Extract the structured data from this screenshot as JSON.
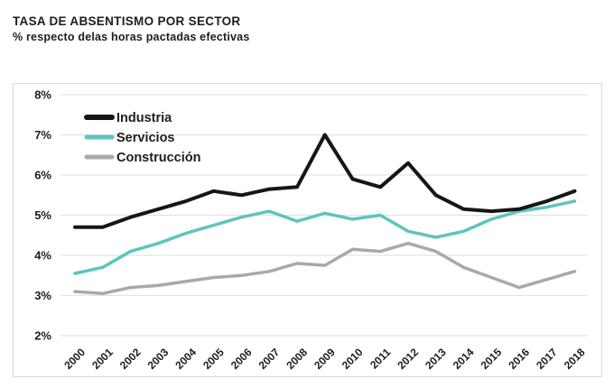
{
  "header": {
    "title": "TASA DE ABSENTISMO POR SECTOR",
    "subtitle": "% respecto delas horas pactadas efectivas"
  },
  "chart_data": {
    "type": "line",
    "title": "TASA DE ABSENTISMO POR SECTOR",
    "subtitle": "% respecto delas horas pactadas efectivas",
    "x": [
      "2000",
      "2001",
      "2002",
      "2003",
      "2004",
      "2005",
      "2006",
      "2007",
      "2008",
      "2009",
      "2010",
      "2011",
      "2012",
      "2013",
      "2014",
      "2015",
      "2016",
      "2017",
      "2018"
    ],
    "series": [
      {
        "name": "Industria",
        "color": "#161616",
        "width": 4,
        "values": [
          4.7,
          4.7,
          4.95,
          5.15,
          5.35,
          5.6,
          5.5,
          5.65,
          5.7,
          7.0,
          5.9,
          5.7,
          6.3,
          5.5,
          5.15,
          5.1,
          5.15,
          5.35,
          5.6
        ]
      },
      {
        "name": "Servicios",
        "color": "#5ec4bf",
        "width": 3.5,
        "values": [
          3.55,
          3.7,
          4.1,
          4.3,
          4.55,
          4.75,
          4.95,
          5.1,
          4.85,
          5.05,
          4.9,
          5.0,
          4.6,
          4.45,
          4.6,
          4.9,
          5.1,
          5.2,
          5.35
        ]
      },
      {
        "name": "Construcción",
        "color": "#a9a9a9",
        "width": 3.5,
        "values": [
          3.1,
          3.05,
          3.2,
          3.25,
          3.35,
          3.45,
          3.5,
          3.6,
          3.8,
          3.75,
          4.15,
          4.1,
          4.3,
          4.1,
          3.7,
          3.45,
          3.2,
          3.4,
          3.6
        ]
      }
    ],
    "yticks": [
      {
        "value": 8,
        "label": "8%"
      },
      {
        "value": 7,
        "label": "7%"
      },
      {
        "value": 6,
        "label": "6%"
      },
      {
        "value": 5,
        "label": "5%"
      },
      {
        "value": 4,
        "label": "4%"
      },
      {
        "value": 3,
        "label": "3%"
      },
      {
        "value": 2,
        "label": "2%"
      }
    ],
    "ylim": [
      2,
      8
    ],
    "grid": true,
    "legend_position": "top-left",
    "colors": {
      "text": "#1d1d1b",
      "grid": "#e3e3e3",
      "panel_border": "#d9d9d9",
      "background": "#ffffff"
    }
  }
}
